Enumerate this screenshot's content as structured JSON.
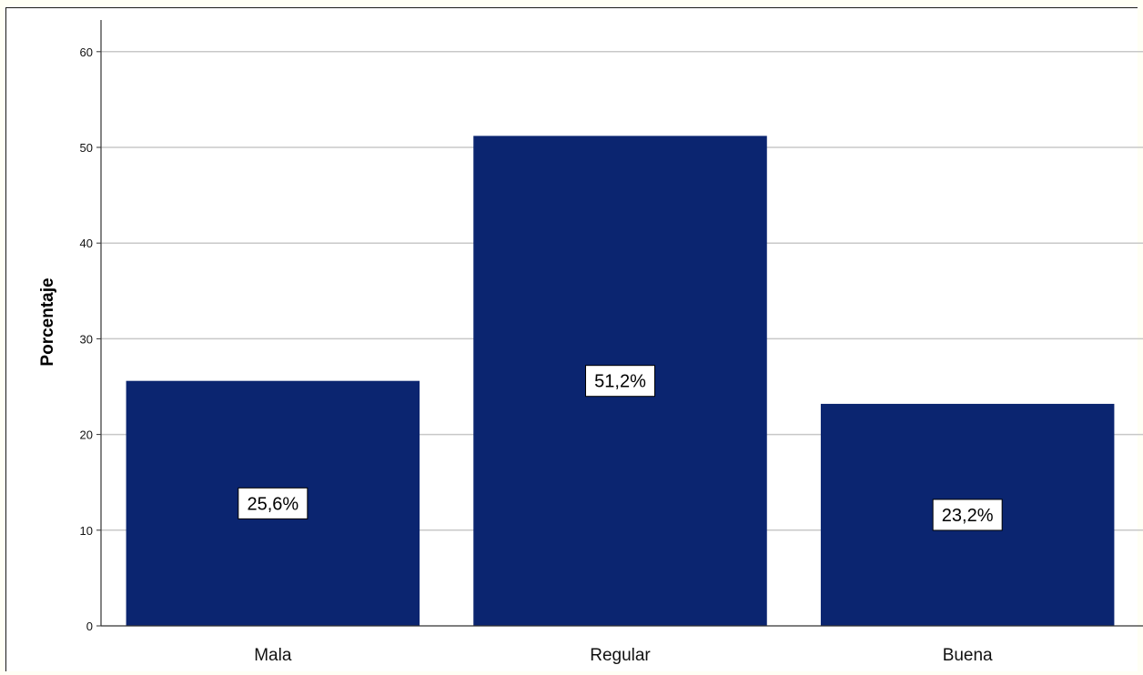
{
  "chart_data": {
    "type": "bar",
    "title": "",
    "xlabel": "",
    "ylabel": "Porcentaje",
    "categories": [
      "Mala",
      "Regular",
      "Buena"
    ],
    "values": [
      25.6,
      51.2,
      23.2
    ],
    "data_labels": [
      "25,6%",
      "51,2%",
      "23,2%"
    ],
    "ylim": [
      0,
      60
    ],
    "yticks": [
      0,
      10,
      20,
      30,
      40,
      50,
      60
    ],
    "grid": true,
    "legend": "none",
    "bar_color": "#0b2570",
    "grid_color": "#c8c8c8"
  }
}
